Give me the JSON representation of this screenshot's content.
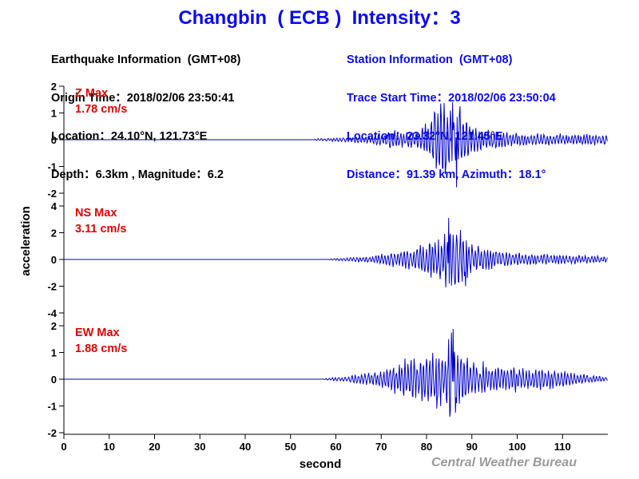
{
  "title": "Changbin  ( ECB )  Intensity：3",
  "earthquake": {
    "heading": "Earthquake Information  (GMT+08)",
    "origin_time": "Origin Time：2018/02/06 23:50:41",
    "location": "Location：24.10°N, 121.73°E",
    "depth_magnitude": "Depth：6.3km , Magnitude：6.2"
  },
  "station": {
    "heading": "Station Information  (GMT+08)",
    "trace_start": "Trace Start Time：2018/02/06 23:50:04",
    "location": "Location：23.32°N, 121.45°E",
    "distance_azimuth": "Distance：91.39 km, Azimuth：18.1°"
  },
  "credit": "Central Weather Bureau",
  "colors": {
    "title": "#0a0af0",
    "trace": "#0000cc",
    "max_label": "#e00000",
    "credit": "#9a9a9a"
  },
  "chart_data": {
    "type": "line",
    "xlabel": "second",
    "ylabel": "acceleration",
    "xlim": [
      0,
      120
    ],
    "x_ticks": [
      0,
      10,
      20,
      30,
      40,
      50,
      60,
      70,
      80,
      90,
      100,
      110
    ],
    "series": [
      {
        "name": "Z",
        "label": "Z Max",
        "max_text": "1.78 cm/s",
        "ylim": [
          -2,
          2
        ],
        "y_ticks": [
          2,
          1,
          0,
          -1,
          -2
        ],
        "onset": 55,
        "envelope": [
          [
            0,
            0
          ],
          [
            55,
            0
          ],
          [
            56,
            0.04
          ],
          [
            60,
            0.07
          ],
          [
            65,
            0.12
          ],
          [
            70,
            0.2
          ],
          [
            72,
            0.35
          ],
          [
            75,
            0.3
          ],
          [
            78,
            0.35
          ],
          [
            80,
            0.6
          ],
          [
            82,
            1.2
          ],
          [
            84,
            1.35
          ],
          [
            85,
            1.4
          ],
          [
            86,
            1.6
          ],
          [
            87,
            1.2
          ],
          [
            88,
            0.9
          ],
          [
            90,
            0.55
          ],
          [
            93,
            0.4
          ],
          [
            97,
            0.3
          ],
          [
            100,
            0.25
          ],
          [
            105,
            0.22
          ],
          [
            110,
            0.2
          ],
          [
            115,
            0.2
          ],
          [
            120,
            0.22
          ]
        ],
        "peaks": [
          {
            "x": 85.8,
            "y": 1.4
          },
          {
            "x": 86.6,
            "y": -1.78
          },
          {
            "x": 83.1,
            "y": 1.35
          },
          {
            "x": 87.4,
            "y": 1.25
          }
        ]
      },
      {
        "name": "NS",
        "label": "NS Max",
        "max_text": "3.11 cm/s",
        "ylim": [
          -4,
          4
        ],
        "y_ticks": [
          4,
          2,
          0,
          -2,
          -4
        ],
        "onset": 58,
        "envelope": [
          [
            0,
            0
          ],
          [
            58,
            0
          ],
          [
            59,
            0.05
          ],
          [
            62,
            0.12
          ],
          [
            67,
            0.25
          ],
          [
            70,
            0.4
          ],
          [
            73,
            0.55
          ],
          [
            76,
            0.8
          ],
          [
            78,
            1.0
          ],
          [
            80,
            1.4
          ],
          [
            82,
            1.5
          ],
          [
            84,
            2.0
          ],
          [
            85,
            2.7
          ],
          [
            86,
            2.2
          ],
          [
            88,
            2.0
          ],
          [
            90,
            1.2
          ],
          [
            93,
            0.8
          ],
          [
            97,
            0.6
          ],
          [
            100,
            0.5
          ],
          [
            105,
            0.4
          ],
          [
            110,
            0.35
          ],
          [
            115,
            0.3
          ],
          [
            120,
            0.25
          ]
        ],
        "peaks": [
          {
            "x": 84.9,
            "y": 3.11
          },
          {
            "x": 88.6,
            "y": -2.0
          },
          {
            "x": 87.5,
            "y": 2.2
          },
          {
            "x": 86.4,
            "y": -1.7
          }
        ]
      },
      {
        "name": "EW",
        "label": "EW Max",
        "max_text": "1.88 cm/s",
        "ylim": [
          -2,
          2
        ],
        "y_ticks": [
          2,
          1,
          0,
          -1,
          -2
        ],
        "onset": 57,
        "envelope": [
          [
            0,
            0
          ],
          [
            57,
            0
          ],
          [
            58,
            0.04
          ],
          [
            62,
            0.1
          ],
          [
            66,
            0.2
          ],
          [
            70,
            0.35
          ],
          [
            73,
            0.55
          ],
          [
            76,
            0.75
          ],
          [
            78,
            0.85
          ],
          [
            80,
            0.95
          ],
          [
            82,
            1.0
          ],
          [
            84,
            1.1
          ],
          [
            85,
            1.5
          ],
          [
            86,
            1.6
          ],
          [
            87,
            1.1
          ],
          [
            89,
            0.85
          ],
          [
            92,
            0.6
          ],
          [
            95,
            0.55
          ],
          [
            98,
            0.5
          ],
          [
            100,
            0.45
          ],
          [
            104,
            0.4
          ],
          [
            108,
            0.35
          ],
          [
            112,
            0.25
          ],
          [
            116,
            0.15
          ],
          [
            120,
            0.08
          ]
        ],
        "peaks": [
          {
            "x": 85.9,
            "y": 1.88
          },
          {
            "x": 86.4,
            "y": -1.25
          },
          {
            "x": 84.9,
            "y": 1.5
          },
          {
            "x": 82.2,
            "y": -1.1
          }
        ]
      }
    ]
  }
}
